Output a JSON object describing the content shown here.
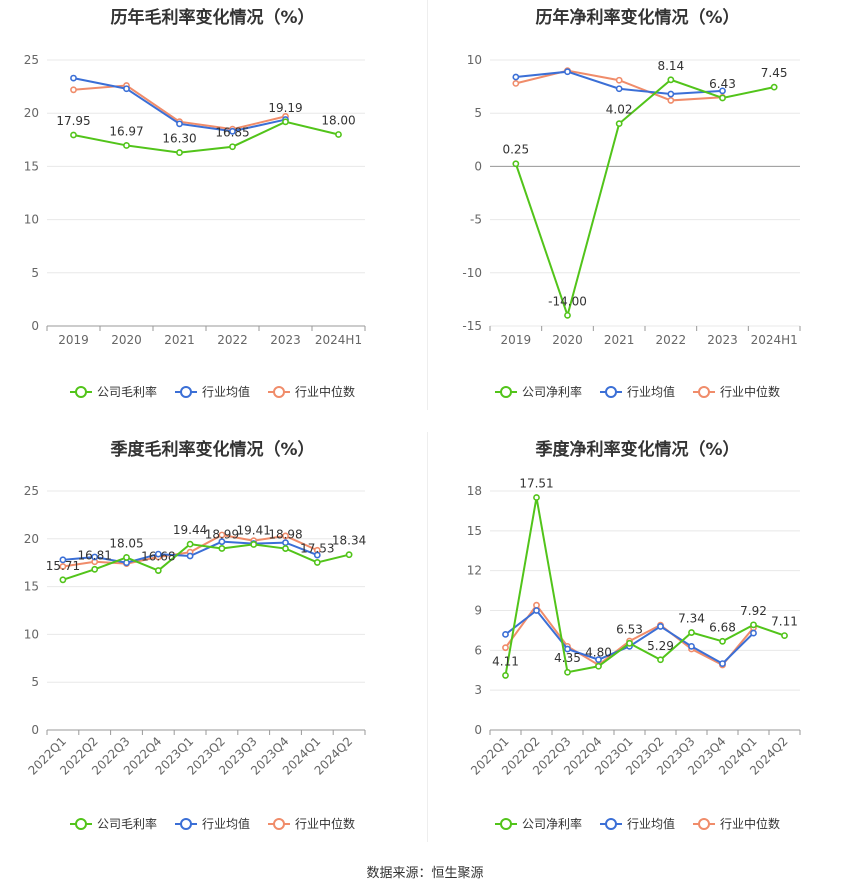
{
  "source_text": "数据来源：恒生聚源",
  "colors": {
    "company": "#52c41a",
    "avg": "#3b6fd6",
    "median": "#f08c6a",
    "grid": "#e8e8e8",
    "axis": "#999999"
  },
  "chart_data": [
    {
      "type": "line",
      "title": "历年毛利率变化情况（%）",
      "categories": [
        "2019",
        "2020",
        "2021",
        "2022",
        "2023",
        "2024H1"
      ],
      "ylim": [
        0,
        25
      ],
      "yticks": [
        0,
        5,
        10,
        15,
        20,
        25
      ],
      "rotate_x": false,
      "legend": [
        "公司毛利率",
        "行业均值",
        "行业中位数"
      ],
      "legend_position": "bottom",
      "series": [
        {
          "name": "公司毛利率",
          "key": "company",
          "values": [
            17.95,
            16.97,
            16.3,
            16.85,
            19.19,
            18.0
          ],
          "labels": [
            "17.95",
            "16.97",
            "16.30",
            "16.85",
            "19.19",
            "18.00"
          ]
        },
        {
          "name": "行业均值",
          "key": "avg",
          "values": [
            23.3,
            22.3,
            19.0,
            18.3,
            19.4,
            null
          ]
        },
        {
          "name": "行业中位数",
          "key": "median",
          "values": [
            22.2,
            22.6,
            19.2,
            18.5,
            19.7,
            null
          ]
        }
      ]
    },
    {
      "type": "line",
      "title": "历年净利率变化情况（%）",
      "categories": [
        "2019",
        "2020",
        "2021",
        "2022",
        "2023",
        "2024H1"
      ],
      "ylim": [
        -15,
        10
      ],
      "yticks": [
        -15,
        -10,
        -5,
        0,
        5,
        10
      ],
      "rotate_x": false,
      "legend": [
        "公司净利率",
        "行业均值",
        "行业中位数"
      ],
      "legend_position": "bottom",
      "series": [
        {
          "name": "公司净利率",
          "key": "company",
          "values": [
            0.25,
            -14.0,
            4.02,
            8.14,
            6.43,
            7.45
          ],
          "labels": [
            "0.25",
            "-14.00",
            "4.02",
            "8.14",
            "6.43",
            "7.45"
          ]
        },
        {
          "name": "行业均值",
          "key": "avg",
          "values": [
            8.4,
            8.9,
            7.3,
            6.8,
            7.1,
            null
          ]
        },
        {
          "name": "行业中位数",
          "key": "median",
          "values": [
            7.8,
            9.0,
            8.1,
            6.2,
            6.5,
            null
          ]
        }
      ]
    },
    {
      "type": "line",
      "title": "季度毛利率变化情况（%）",
      "categories": [
        "2022Q1",
        "2022Q2",
        "2022Q3",
        "2022Q4",
        "2023Q1",
        "2023Q2",
        "2023Q3",
        "2023Q4",
        "2024Q1",
        "2024Q2"
      ],
      "ylim": [
        0,
        25
      ],
      "yticks": [
        0,
        5,
        10,
        15,
        20,
        25
      ],
      "rotate_x": true,
      "legend": [
        "公司毛利率",
        "行业均值",
        "行业中位数"
      ],
      "legend_position": "bottom",
      "series": [
        {
          "name": "公司毛利率",
          "key": "company",
          "values": [
            15.71,
            16.81,
            18.05,
            16.68,
            19.44,
            18.99,
            19.41,
            18.98,
            17.53,
            18.34
          ],
          "labels": [
            "15.71",
            "16.81",
            "18.05",
            "16.68",
            "19.44",
            "18.99",
            "19.41",
            "18.98",
            "17.53",
            "18.34"
          ]
        },
        {
          "name": "行业均值",
          "key": "avg",
          "values": [
            17.8,
            18.1,
            17.5,
            18.4,
            18.2,
            19.7,
            19.5,
            19.6,
            18.3,
            null
          ]
        },
        {
          "name": "行业中位数",
          "key": "median",
          "values": [
            17.1,
            17.6,
            17.4,
            18.1,
            18.6,
            20.4,
            19.8,
            20.3,
            18.8,
            null
          ]
        }
      ]
    },
    {
      "type": "line",
      "title": "季度净利率变化情况（%）",
      "categories": [
        "2022Q1",
        "2022Q2",
        "2022Q3",
        "2022Q4",
        "2023Q1",
        "2023Q2",
        "2023Q3",
        "2023Q4",
        "2024Q1",
        "2024Q2"
      ],
      "ylim": [
        0,
        18
      ],
      "yticks": [
        0,
        3,
        6,
        9,
        12,
        15,
        18
      ],
      "rotate_x": true,
      "legend": [
        "公司净利率",
        "行业均值",
        "行业中位数"
      ],
      "legend_position": "bottom",
      "series": [
        {
          "name": "公司净利率",
          "key": "company",
          "values": [
            4.11,
            17.51,
            4.35,
            4.8,
            6.53,
            5.29,
            7.34,
            6.68,
            7.92,
            7.11
          ],
          "labels": [
            "4.11",
            "17.51",
            "4.35",
            "4.80",
            "6.53",
            "5.29",
            "7.34",
            "6.68",
            "7.92",
            "7.11"
          ]
        },
        {
          "name": "行业均值",
          "key": "avg",
          "values": [
            7.2,
            9.0,
            6.1,
            5.3,
            6.3,
            7.8,
            6.3,
            5.0,
            7.3,
            null
          ]
        },
        {
          "name": "行业中位数",
          "key": "median",
          "values": [
            6.2,
            9.4,
            6.3,
            4.9,
            6.7,
            7.9,
            6.1,
            4.9,
            7.7,
            null
          ]
        }
      ]
    }
  ]
}
